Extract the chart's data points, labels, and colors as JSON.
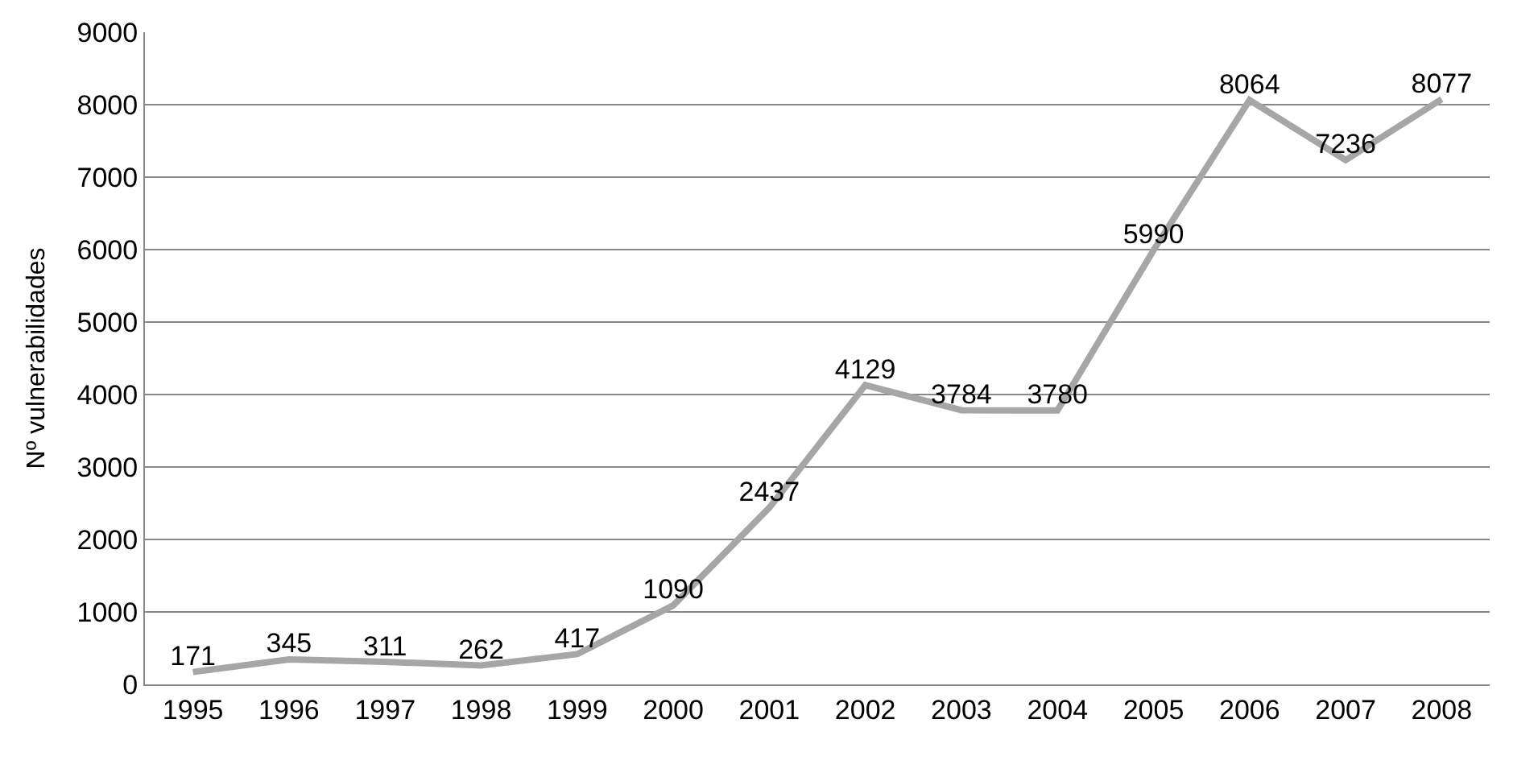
{
  "chart_data": {
    "type": "line",
    "ylabel": "Nº vulnerabilidades",
    "categories": [
      "1995",
      "1996",
      "1997",
      "1998",
      "1999",
      "2000",
      "2001",
      "2002",
      "2003",
      "2004",
      "2005",
      "2006",
      "2007",
      "2008"
    ],
    "series": [
      {
        "color": "#a6a6a6",
        "values": [
          171,
          345,
          311,
          262,
          417,
          1090,
          2437,
          4129,
          3784,
          3780,
          5990,
          8064,
          7236,
          8077
        ]
      }
    ],
    "ylim": [
      0,
      9000
    ],
    "yticks": [
      0,
      1000,
      2000,
      3000,
      4000,
      5000,
      6000,
      7000,
      8000,
      9000
    ],
    "grid": "y",
    "marker": "none",
    "line_style": "solid",
    "data_labels": true
  }
}
